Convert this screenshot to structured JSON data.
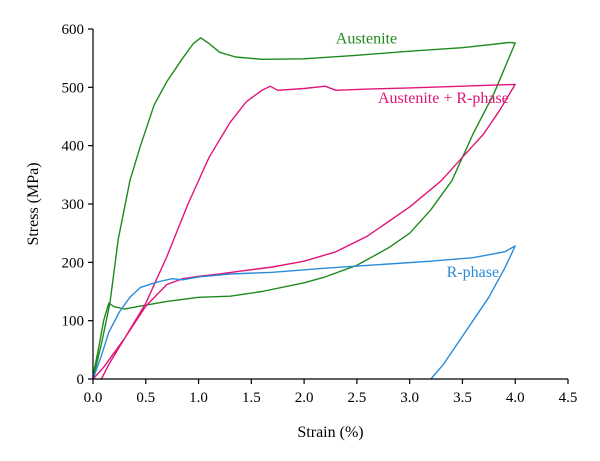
{
  "chart_data": {
    "type": "line",
    "title": "",
    "xlabel": "Strain (%)",
    "ylabel": "Stress (MPa)",
    "xlim": [
      0.0,
      4.5
    ],
    "ylim": [
      0,
      600
    ],
    "xticks": [
      "0.0",
      "0.5",
      "1.0",
      "1.5",
      "2.0",
      "2.5",
      "3.0",
      "3.5",
      "4.0",
      "4.5"
    ],
    "yticks": [
      "0",
      "100",
      "200",
      "300",
      "400",
      "500",
      "600"
    ],
    "grid": false,
    "legend": "none",
    "series": [
      {
        "name": "Austenite",
        "color": "#1e8a1e",
        "points": [
          [
            0.0,
            0
          ],
          [
            0.08,
            60
          ],
          [
            0.16,
            130
          ],
          [
            0.24,
            240
          ],
          [
            0.35,
            340
          ],
          [
            0.45,
            400
          ],
          [
            0.58,
            470
          ],
          [
            0.7,
            510
          ],
          [
            0.85,
            550
          ],
          [
            0.95,
            575
          ],
          [
            1.02,
            585
          ],
          [
            1.1,
            575
          ],
          [
            1.2,
            560
          ],
          [
            1.35,
            552
          ],
          [
            1.6,
            548
          ],
          [
            2.0,
            549
          ],
          [
            2.5,
            555
          ],
          [
            3.0,
            562
          ],
          [
            3.5,
            568
          ],
          [
            3.8,
            574
          ],
          [
            3.95,
            577
          ],
          [
            4.0,
            576
          ],
          [
            3.8,
            490
          ],
          [
            3.6,
            420
          ],
          [
            3.4,
            340
          ],
          [
            3.2,
            290
          ],
          [
            3.0,
            250
          ],
          [
            2.8,
            225
          ],
          [
            2.5,
            195
          ],
          [
            2.2,
            175
          ],
          [
            2.0,
            165
          ],
          [
            1.6,
            150
          ],
          [
            1.3,
            142
          ],
          [
            1.0,
            140
          ],
          [
            0.7,
            133
          ],
          [
            0.45,
            125
          ],
          [
            0.3,
            120
          ],
          [
            0.2,
            124
          ],
          [
            0.15,
            130
          ],
          [
            0.1,
            100
          ],
          [
            0.05,
            50
          ],
          [
            0.0,
            5
          ]
        ]
      },
      {
        "name": "Austenite + R-phase",
        "color": "#e0157a",
        "points": [
          [
            0.0,
            0
          ],
          [
            0.1,
            20
          ],
          [
            0.3,
            70
          ],
          [
            0.5,
            130
          ],
          [
            0.7,
            210
          ],
          [
            0.9,
            300
          ],
          [
            1.1,
            380
          ],
          [
            1.3,
            440
          ],
          [
            1.45,
            475
          ],
          [
            1.6,
            495
          ],
          [
            1.68,
            502
          ],
          [
            1.75,
            495
          ],
          [
            2.0,
            498
          ],
          [
            2.2,
            502
          ],
          [
            2.3,
            495
          ],
          [
            2.6,
            497
          ],
          [
            3.0,
            499
          ],
          [
            3.5,
            502
          ],
          [
            4.0,
            505
          ],
          [
            3.85,
            460
          ],
          [
            3.7,
            420
          ],
          [
            3.5,
            380
          ],
          [
            3.3,
            340
          ],
          [
            3.0,
            295
          ],
          [
            2.8,
            270
          ],
          [
            2.6,
            245
          ],
          [
            2.3,
            218
          ],
          [
            2.0,
            202
          ],
          [
            1.7,
            192
          ],
          [
            1.4,
            185
          ],
          [
            1.2,
            180
          ],
          [
            1.0,
            176
          ],
          [
            0.85,
            172
          ],
          [
            0.7,
            162
          ],
          [
            0.5,
            125
          ],
          [
            0.3,
            70
          ],
          [
            0.15,
            25
          ],
          [
            0.08,
            0
          ]
        ]
      },
      {
        "name": "R-phase",
        "color": "#2a8bd8",
        "points": [
          [
            0.0,
            0
          ],
          [
            0.08,
            40
          ],
          [
            0.15,
            80
          ],
          [
            0.25,
            115
          ],
          [
            0.35,
            140
          ],
          [
            0.45,
            157
          ],
          [
            0.55,
            163
          ],
          [
            0.65,
            168
          ],
          [
            0.75,
            172
          ],
          [
            0.85,
            170
          ],
          [
            1.0,
            175
          ],
          [
            1.3,
            180
          ],
          [
            1.7,
            183
          ],
          [
            2.2,
            190
          ],
          [
            2.7,
            196
          ],
          [
            3.2,
            202
          ],
          [
            3.6,
            208
          ],
          [
            3.9,
            218
          ],
          [
            4.0,
            228
          ],
          [
            3.9,
            190
          ],
          [
            3.75,
            140
          ],
          [
            3.6,
            100
          ],
          [
            3.45,
            60
          ],
          [
            3.32,
            25
          ],
          [
            3.2,
            0
          ]
        ]
      }
    ],
    "annotations": [
      {
        "text": "Austenite",
        "x": 2.3,
        "y": 575
      },
      {
        "text": "Austenite + R-phase",
        "x": 2.7,
        "y": 473
      },
      {
        "text": "R-phase",
        "x": 3.35,
        "y": 175
      }
    ]
  }
}
